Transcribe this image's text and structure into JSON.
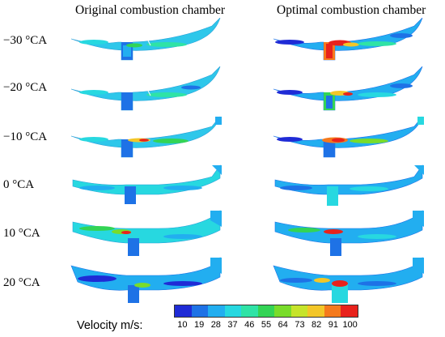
{
  "titles": {
    "left": "Original combustion chamber",
    "right": "Optimal combustion chamber"
  },
  "rows": [
    {
      "label": "−30 °CA"
    },
    {
      "label": "−20 °CA"
    },
    {
      "label": "−10 °CA"
    },
    {
      "label": "0 °CA"
    },
    {
      "label": "10 °CA"
    },
    {
      "label": "20 °CA"
    }
  ],
  "legend": {
    "label": "Velocity m/s:",
    "ticks": [
      "10",
      "19",
      "28",
      "37",
      "46",
      "55",
      "64",
      "73",
      "82",
      "91",
      "100"
    ],
    "colors": [
      "#1f2bd6",
      "#1e72e6",
      "#22aef0",
      "#27d8e0",
      "#2fe3a6",
      "#33d455",
      "#79dc2a",
      "#c6e42a",
      "#f3c628",
      "#f57a1c",
      "#e8221c"
    ]
  }
}
